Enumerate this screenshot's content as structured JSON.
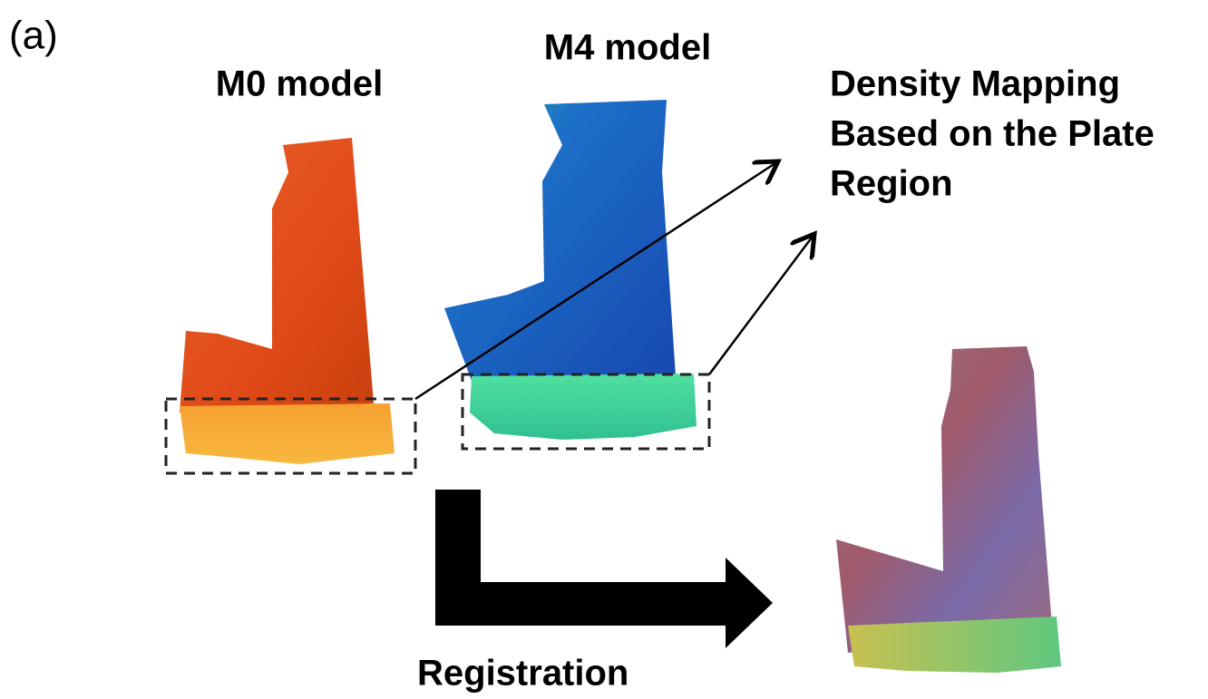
{
  "panel_label": "(a)",
  "models": [
    {
      "label": "M0 model"
    },
    {
      "label": "M4 model"
    }
  ],
  "mapping_label": [
    "Density Mapping",
    "Based on the Plate",
    "Region"
  ],
  "arrow_label": "Registration"
}
